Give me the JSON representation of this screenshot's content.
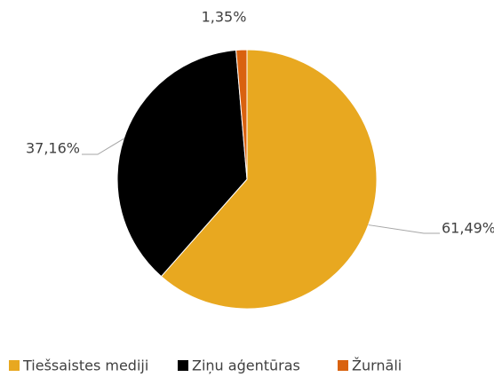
{
  "chart_data": {
    "type": "pie",
    "categories": [
      "Tiešsaistes mediji",
      "Ziņu aģentūras",
      "Žurnāli"
    ],
    "values": [
      61.49,
      37.16,
      1.35
    ],
    "value_labels": [
      "61,49%",
      "37,16%",
      "1,35%"
    ],
    "colors": [
      "#E8A820",
      "#000000",
      "#D9620F"
    ],
    "legend": "bottom"
  }
}
